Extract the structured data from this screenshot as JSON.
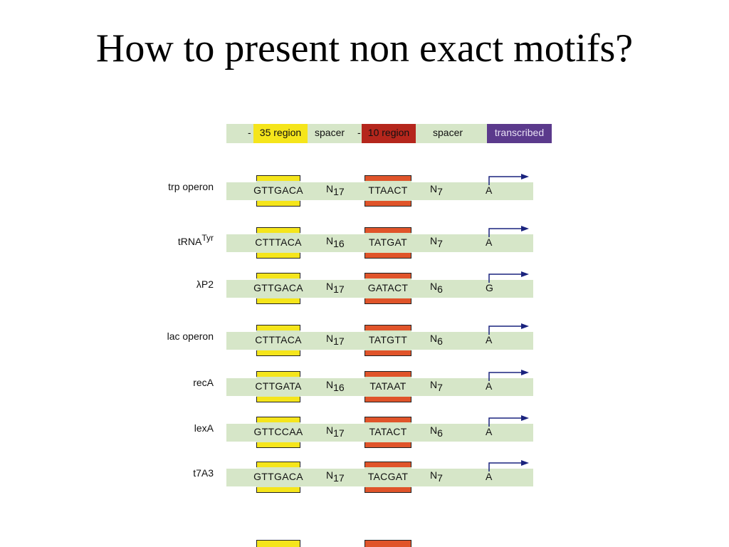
{
  "title": "How to present non exact motifs?",
  "legend": {
    "dash1": "-",
    "region35": "35 region",
    "spacer1": "spacer",
    "dash2": "-",
    "region10": "10 region",
    "spacer2": "spacer",
    "transcribed": "transcribed"
  },
  "rows": [
    {
      "label": "trp operon",
      "label_sup": "",
      "seq35": "GTTGACA",
      "n1": "17",
      "seq10": "TTAACT",
      "n2": "7",
      "start": "A"
    },
    {
      "label": "tRNA",
      "label_sup": "Tyr",
      "seq35": "CTTTACA",
      "n1": "16",
      "seq10": "TATGAT",
      "n2": "7",
      "start": "A"
    },
    {
      "label": "λP2",
      "label_sup": "",
      "seq35": "GTTGACA",
      "n1": "17",
      "seq10": "GATACT",
      "n2": "6",
      "start": "G"
    },
    {
      "label": "lac operon",
      "label_sup": "",
      "seq35": "CTTTACA",
      "n1": "17",
      "seq10": "TATGTT",
      "n2": "6",
      "start": "A"
    },
    {
      "label": "recA",
      "label_sup": "",
      "seq35": "CTTGATA",
      "n1": "16",
      "seq10": "TATAAT",
      "n2": "7",
      "start": "A"
    },
    {
      "label": "lexA",
      "label_sup": "",
      "seq35": "GTTCCAA",
      "n1": "17",
      "seq10": "TATACT",
      "n2": "6",
      "start": "A"
    },
    {
      "label": "t7A3",
      "label_sup": "",
      "seq35": "GTTGACA",
      "n1": "17",
      "seq10": "TACGAT",
      "n2": "7",
      "start": "A"
    }
  ],
  "spacer_symbol": "N",
  "colors": {
    "background_bar": "#d6e6c8",
    "region35": "#f5e51b",
    "region10_legend": "#b5261c",
    "region10_box": "#e0542a",
    "transcribed": "#5b3a8c",
    "arrow": "#1a237e"
  }
}
